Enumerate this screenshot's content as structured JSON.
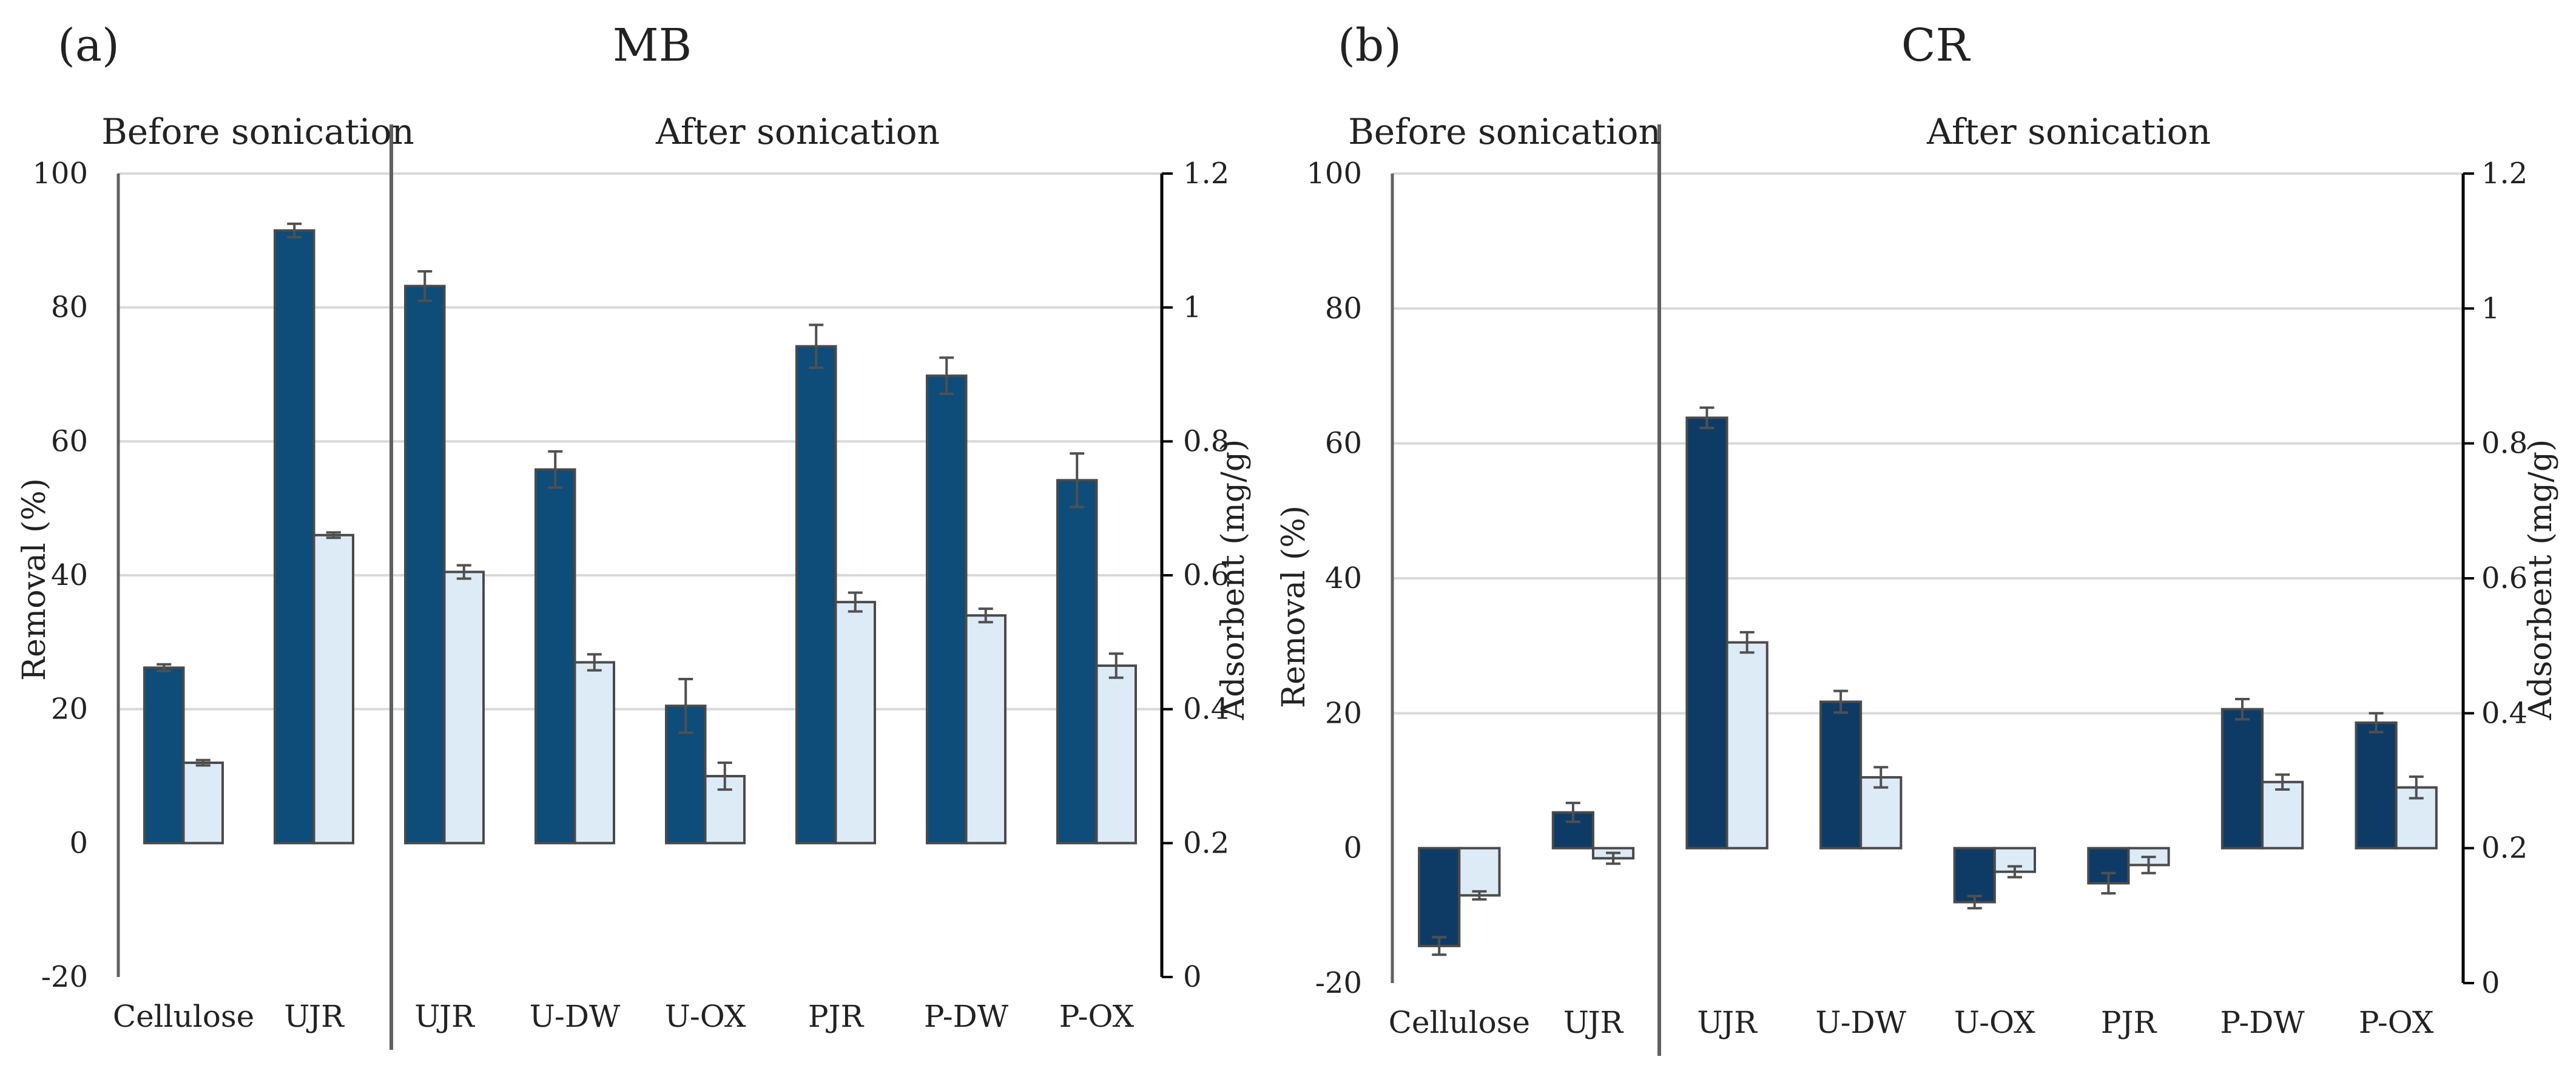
{
  "colors": {
    "dark_bar": "#0e4c79",
    "dark_bar_b": "#0e3b66",
    "light_bar": "#ddebf7",
    "bar_edge": "#4a4a4a",
    "grid": "#d9d9d9",
    "axis": "#606060",
    "error": "#505050"
  },
  "chart_data": [
    {
      "type": "bar",
      "panel_label": "(a)",
      "title": "MB",
      "section_labels": [
        "Before sonication",
        "After sonication"
      ],
      "categories": [
        "Cellulose",
        "UJR",
        "UJR",
        "U-DW",
        "U-OX",
        "PJR",
        "P-DW",
        "P-OX"
      ],
      "ylabel": "Removal (%)",
      "y2label": "Adsorbent (mg/g)",
      "ylim": [
        -20,
        100
      ],
      "y2lim": [
        0,
        1.2
      ],
      "yticks": [
        "-20",
        "0",
        "20",
        "40",
        "60",
        "80",
        "100"
      ],
      "y2ticks": [
        "0",
        "0.2",
        "0.4",
        "0.6",
        "0.8",
        "1",
        "1.2"
      ],
      "grid": true,
      "series": [
        {
          "axis": "left",
          "values": [
            26.2,
            91.5,
            83.2,
            55.8,
            20.5,
            74.2,
            69.8,
            54.2
          ],
          "errors": [
            0.5,
            1.0,
            2.2,
            2.7,
            4.0,
            3.2,
            2.7,
            4.0
          ]
        },
        {
          "axis": "right",
          "values": [
            0.32,
            0.66,
            0.605,
            0.47,
            0.3,
            0.56,
            0.54,
            0.465
          ],
          "errors": [
            0.004,
            0.004,
            0.01,
            0.012,
            0.02,
            0.014,
            0.01,
            0.018
          ]
        }
      ]
    },
    {
      "type": "bar",
      "panel_label": "(b)",
      "title": "CR",
      "section_labels": [
        "Before sonication",
        "After sonication"
      ],
      "categories": [
        "Cellulose",
        "UJR",
        "UJR",
        "U-DW",
        "U-OX",
        "PJR",
        "P-DW",
        "P-OX"
      ],
      "ylabel": "Removal (%)",
      "y2label": "Adsorbent (mg/g)",
      "ylim": [
        -20,
        100
      ],
      "y2lim": [
        0,
        1.2
      ],
      "yticks": [
        "-20",
        "0",
        "20",
        "40",
        "60",
        "80",
        "100"
      ],
      "y2ticks": [
        "0",
        "0.2",
        "0.4",
        "0.6",
        "0.8",
        "1",
        "1.2"
      ],
      "grid": true,
      "series": [
        {
          "axis": "left",
          "values": [
            -14.5,
            5.3,
            63.8,
            21.7,
            -8,
            -5.2,
            20.6,
            18.6
          ],
          "errors": [
            1.3,
            1.4,
            1.5,
            1.6,
            0.9,
            1.5,
            1.5,
            1.4
          ]
        },
        {
          "axis": "right",
          "values": [
            0.13,
            0.185,
            0.505,
            0.305,
            0.165,
            0.175,
            0.298,
            0.29
          ],
          "errors": [
            0.006,
            0.008,
            0.015,
            0.015,
            0.008,
            0.012,
            0.011,
            0.016
          ]
        }
      ]
    }
  ]
}
